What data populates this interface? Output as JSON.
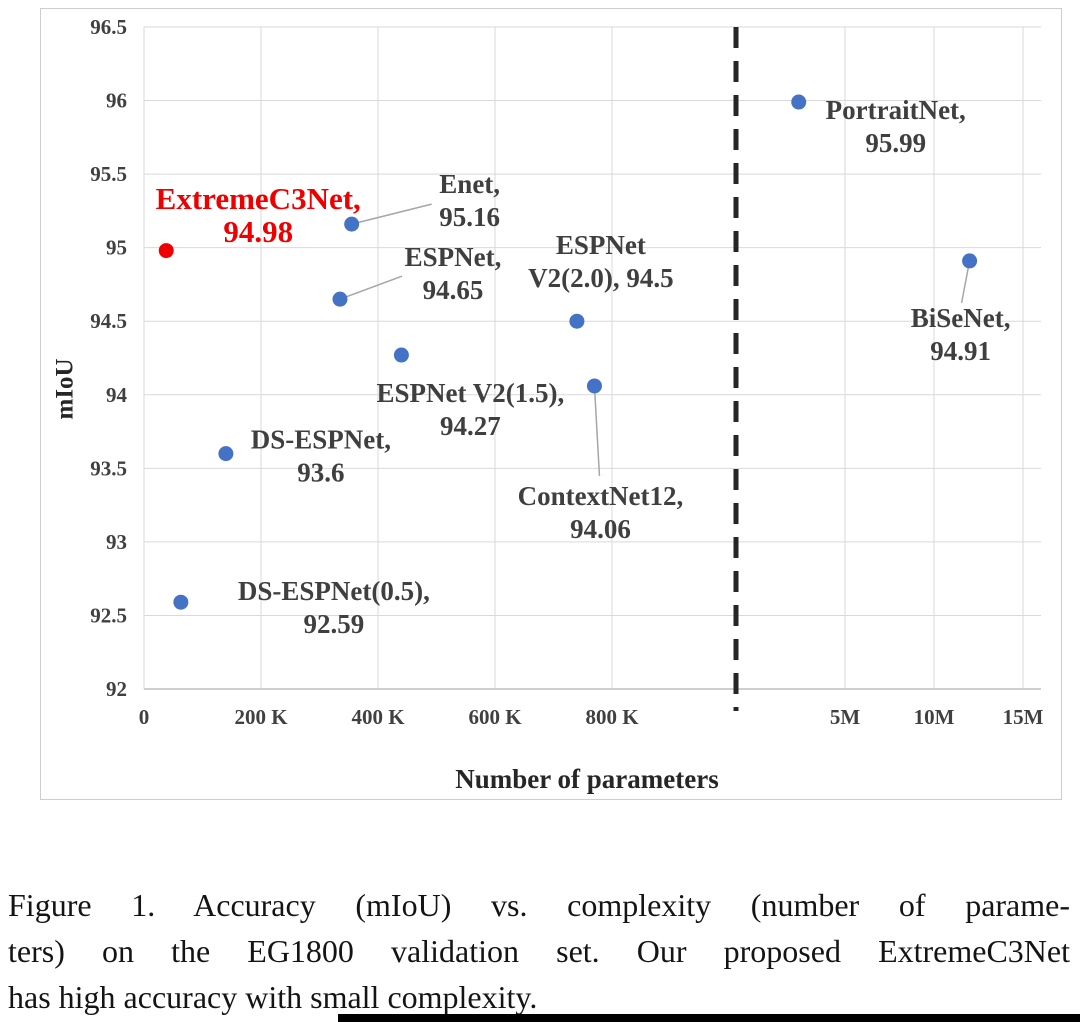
{
  "figure": {
    "caption_lines": [
      "Figure 1. Accuracy (mIoU) vs. complexity (number of parame-",
      "ters) on the EG1800 validation set. Our proposed ExtremeC3Net",
      "has high accuracy with small complexity."
    ]
  },
  "chart_data": {
    "type": "scatter",
    "title": "",
    "xlabel": "Number of parameters",
    "ylabel": "mIoU",
    "grid": true,
    "legend": "none",
    "panels": "broken x-axis: left panel in thousands (K), right panel in millions (M), separated by a vertical dashed line",
    "y_axis": {
      "min": 92,
      "max": 96.5,
      "ticks": [
        {
          "value": 96.5,
          "label": "96.5"
        },
        {
          "value": 96,
          "label": "96"
        },
        {
          "value": 95.5,
          "label": "95.5"
        },
        {
          "value": 95,
          "label": "95"
        },
        {
          "value": 94.5,
          "label": "94.5"
        },
        {
          "value": 94,
          "label": "94"
        },
        {
          "value": 93.5,
          "label": "93.5"
        },
        {
          "value": 93,
          "label": "93"
        },
        {
          "value": 92.5,
          "label": "92.5"
        },
        {
          "value": 92,
          "label": "92"
        }
      ]
    },
    "x_axis_left": {
      "unit": "K",
      "range": [
        0,
        950
      ],
      "ticks": [
        {
          "value": 0,
          "label": "0"
        },
        {
          "value": 200,
          "label": "200 K"
        },
        {
          "value": 400,
          "label": "400 K"
        },
        {
          "value": 600,
          "label": "600 K"
        },
        {
          "value": 800,
          "label": "800 K"
        }
      ]
    },
    "x_axis_right": {
      "unit": "M",
      "range": [
        0,
        15.5
      ],
      "ticks": [
        {
          "value": 5,
          "label": "5M"
        },
        {
          "value": 10,
          "label": "10M"
        },
        {
          "value": 15,
          "label": "15M"
        }
      ]
    },
    "colors": {
      "point_blue": "#4472c4",
      "point_red": "#ee0000",
      "gridline": "#d9d9d9",
      "axis_line": "#bfbfbf",
      "leader_line": "#a6a6a6",
      "label_text": "#3f3f3f",
      "highlight_text": "#ee0000",
      "separator": "#262626"
    },
    "points": [
      {
        "name": "ExtremeC3Net",
        "panel": "left",
        "params": 38,
        "unit": "K",
        "miou": 94.98,
        "color": "#ee0000",
        "label_color": "#ee0000",
        "label_size": 31,
        "label_lines": [
          "ExtremeC3Net,",
          "94.98"
        ],
        "label_offset": [
          92,
          -52
        ]
      },
      {
        "name": "Enet",
        "panel": "left",
        "params": 355,
        "unit": "K",
        "miou": 95.16,
        "color": "#4472c4",
        "label_lines": [
          "Enet,",
          "95.16"
        ],
        "label_offset": [
          118,
          -40
        ],
        "leader_offset": [
          80,
          -20
        ]
      },
      {
        "name": "ESPNet",
        "panel": "left",
        "params": 335,
        "unit": "K",
        "miou": 94.65,
        "color": "#4472c4",
        "label_lines": [
          "ESPNet,",
          "94.65"
        ],
        "label_offset": [
          113,
          -42
        ],
        "leader_offset": [
          62,
          -23
        ]
      },
      {
        "name": "ESPNet V2(2.0)",
        "panel": "left",
        "params": 740,
        "unit": "K",
        "miou": 94.5,
        "color": "#4472c4",
        "label_lines": [
          "ESPNet",
          "V2(2.0), 94.5"
        ],
        "label_offset": [
          24,
          -76
        ]
      },
      {
        "name": "ESPNet V2(1.5)",
        "panel": "left",
        "params": 440,
        "unit": "K",
        "miou": 94.27,
        "color": "#4472c4",
        "label_lines": [
          "ESPNet V2(1.5),",
          "94.27"
        ],
        "label_offset": [
          69,
          38
        ]
      },
      {
        "name": "DS-ESPNet",
        "panel": "left",
        "params": 140,
        "unit": "K",
        "miou": 93.6,
        "color": "#4472c4",
        "label_lines": [
          "DS-ESPNet,",
          "93.6"
        ],
        "label_offset": [
          95,
          -14
        ]
      },
      {
        "name": "ContextNet12",
        "panel": "left",
        "params": 770,
        "unit": "K",
        "miou": 94.06,
        "color": "#4472c4",
        "label_lines": [
          "ContextNet12,",
          "94.06"
        ],
        "label_offset": [
          6,
          110
        ],
        "leader_offset": [
          5,
          90
        ]
      },
      {
        "name": "DS-ESPNet(0.5)",
        "panel": "left",
        "params": 63,
        "unit": "K",
        "miou": 92.59,
        "color": "#4472c4",
        "label_lines": [
          "DS-ESPNet(0.5),",
          "92.59"
        ],
        "label_offset": [
          153,
          -11
        ]
      },
      {
        "name": "PortraitNet",
        "panel": "right",
        "params": 2.4,
        "unit": "M",
        "miou": 95.99,
        "color": "#4472c4",
        "label_lines": [
          "PortraitNet,",
          "95.99"
        ],
        "label_offset": [
          97,
          8
        ]
      },
      {
        "name": "BiSeNet",
        "panel": "right",
        "params": 12,
        "unit": "M",
        "miou": 94.91,
        "color": "#4472c4",
        "label_lines": [
          "BiSeNet,",
          "94.91"
        ],
        "label_offset": [
          -9,
          57
        ],
        "leader_offset": [
          -8,
          42
        ]
      }
    ]
  }
}
